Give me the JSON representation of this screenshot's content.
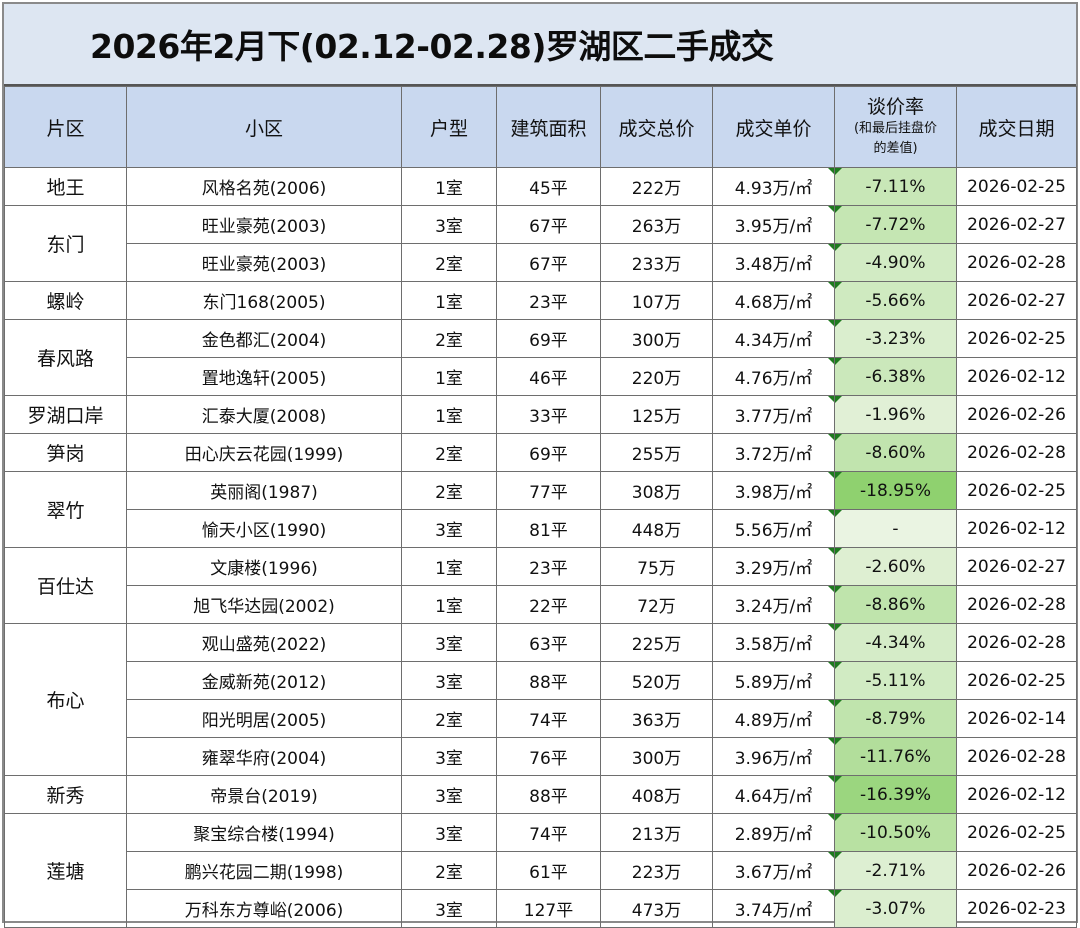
{
  "title": "2026年2月下(02.12-02.28)罗湖区二手成交",
  "headers": {
    "district": "片区",
    "estate": "小区",
    "layout": "户型",
    "area": "建筑面积",
    "total": "成交总价",
    "unit": "成交单价",
    "rate_main": "谈价率",
    "rate_sub1": "(和最后挂盘价",
    "rate_sub2": "的差值)",
    "date": "成交日期"
  },
  "colors": {
    "header_bg": "#c9d8ef",
    "title_bg": "#dde6f2",
    "rate_strong": "#8fd16f",
    "rate_light": "#eaf4e2",
    "rate_marker": "#1f7a1f"
  },
  "rows": [
    {
      "district": "地王",
      "span": 1,
      "estate": "风格名苑(2006)",
      "layout": "1室",
      "area": "45平",
      "total": "222万",
      "unit": "4.93万/㎡",
      "rate": "-7.11%",
      "rate_pct": 7.11,
      "date": "2026-02-25"
    },
    {
      "district": "东门",
      "span": 2,
      "estate": "旺业豪苑(2003)",
      "layout": "3室",
      "area": "67平",
      "total": "263万",
      "unit": "3.95万/㎡",
      "rate": "-7.72%",
      "rate_pct": 7.72,
      "date": "2026-02-27"
    },
    {
      "district": "",
      "span": 0,
      "estate": "旺业豪苑(2003)",
      "layout": "2室",
      "area": "67平",
      "total": "233万",
      "unit": "3.48万/㎡",
      "rate": "-4.90%",
      "rate_pct": 4.9,
      "date": "2026-02-28"
    },
    {
      "district": "螺岭",
      "span": 1,
      "estate": "东门168(2005)",
      "layout": "1室",
      "area": "23平",
      "total": "107万",
      "unit": "4.68万/㎡",
      "rate": "-5.66%",
      "rate_pct": 5.66,
      "date": "2026-02-27"
    },
    {
      "district": "春风路",
      "span": 2,
      "estate": "金色都汇(2004)",
      "layout": "2室",
      "area": "69平",
      "total": "300万",
      "unit": "4.34万/㎡",
      "rate": "-3.23%",
      "rate_pct": 3.23,
      "date": "2026-02-25"
    },
    {
      "district": "",
      "span": 0,
      "estate": "置地逸轩(2005)",
      "layout": "1室",
      "area": "46平",
      "total": "220万",
      "unit": "4.76万/㎡",
      "rate": "-6.38%",
      "rate_pct": 6.38,
      "date": "2026-02-12"
    },
    {
      "district": "罗湖口岸",
      "span": 1,
      "estate": "汇泰大厦(2008)",
      "layout": "1室",
      "area": "33平",
      "total": "125万",
      "unit": "3.77万/㎡",
      "rate": "-1.96%",
      "rate_pct": 1.96,
      "date": "2026-02-26"
    },
    {
      "district": "笋岗",
      "span": 1,
      "estate": "田心庆云花园(1999)",
      "layout": "2室",
      "area": "69平",
      "total": "255万",
      "unit": "3.72万/㎡",
      "rate": "-8.60%",
      "rate_pct": 8.6,
      "date": "2026-02-28"
    },
    {
      "district": "翠竹",
      "span": 2,
      "estate": "英丽阁(1987)",
      "layout": "2室",
      "area": "77平",
      "total": "308万",
      "unit": "3.98万/㎡",
      "rate": "-18.95%",
      "rate_pct": 18.95,
      "date": "2026-02-25"
    },
    {
      "district": "",
      "span": 0,
      "estate": "愉天小区(1990)",
      "layout": "3室",
      "area": "81平",
      "total": "448万",
      "unit": "5.56万/㎡",
      "rate": "-",
      "rate_pct": 0,
      "date": "2026-02-12"
    },
    {
      "district": "百仕达",
      "span": 2,
      "estate": "文康楼(1996)",
      "layout": "1室",
      "area": "23平",
      "total": "75万",
      "unit": "3.29万/㎡",
      "rate": "-2.60%",
      "rate_pct": 2.6,
      "date": "2026-02-27"
    },
    {
      "district": "",
      "span": 0,
      "estate": "旭飞华达园(2002)",
      "layout": "1室",
      "area": "22平",
      "total": "72万",
      "unit": "3.24万/㎡",
      "rate": "-8.86%",
      "rate_pct": 8.86,
      "date": "2026-02-28"
    },
    {
      "district": "布心",
      "span": 4,
      "estate": "观山盛苑(2022)",
      "layout": "3室",
      "area": "63平",
      "total": "225万",
      "unit": "3.58万/㎡",
      "rate": "-4.34%",
      "rate_pct": 4.34,
      "date": "2026-02-28"
    },
    {
      "district": "",
      "span": 0,
      "estate": "金威新苑(2012)",
      "layout": "3室",
      "area": "88平",
      "total": "520万",
      "unit": "5.89万/㎡",
      "rate": "-5.11%",
      "rate_pct": 5.11,
      "date": "2026-02-25"
    },
    {
      "district": "",
      "span": 0,
      "estate": "阳光明居(2005)",
      "layout": "2室",
      "area": "74平",
      "total": "363万",
      "unit": "4.89万/㎡",
      "rate": "-8.79%",
      "rate_pct": 8.79,
      "date": "2026-02-14"
    },
    {
      "district": "",
      "span": 0,
      "estate": "雍翠华府(2004)",
      "layout": "3室",
      "area": "76平",
      "total": "300万",
      "unit": "3.96万/㎡",
      "rate": "-11.76%",
      "rate_pct": 11.76,
      "date": "2026-02-28"
    },
    {
      "district": "新秀",
      "span": 1,
      "estate": "帝景台(2019)",
      "layout": "3室",
      "area": "88平",
      "total": "408万",
      "unit": "4.64万/㎡",
      "rate": "-16.39%",
      "rate_pct": 16.39,
      "date": "2026-02-12"
    },
    {
      "district": "莲塘",
      "span": 3,
      "estate": "聚宝综合楼(1994)",
      "layout": "3室",
      "area": "74平",
      "total": "213万",
      "unit": "2.89万/㎡",
      "rate": "-10.50%",
      "rate_pct": 10.5,
      "date": "2026-02-25"
    },
    {
      "district": "",
      "span": 0,
      "estate": "鹏兴花园二期(1998)",
      "layout": "2室",
      "area": "61平",
      "total": "223万",
      "unit": "3.67万/㎡",
      "rate": "-2.71%",
      "rate_pct": 2.71,
      "date": "2026-02-26"
    },
    {
      "district": "",
      "span": 0,
      "estate": "万科东方尊峪(2006)",
      "layout": "3室",
      "area": "127平",
      "total": "473万",
      "unit": "3.74万/㎡",
      "rate": "-3.07%",
      "rate_pct": 3.07,
      "date": "2026-02-23"
    }
  ]
}
